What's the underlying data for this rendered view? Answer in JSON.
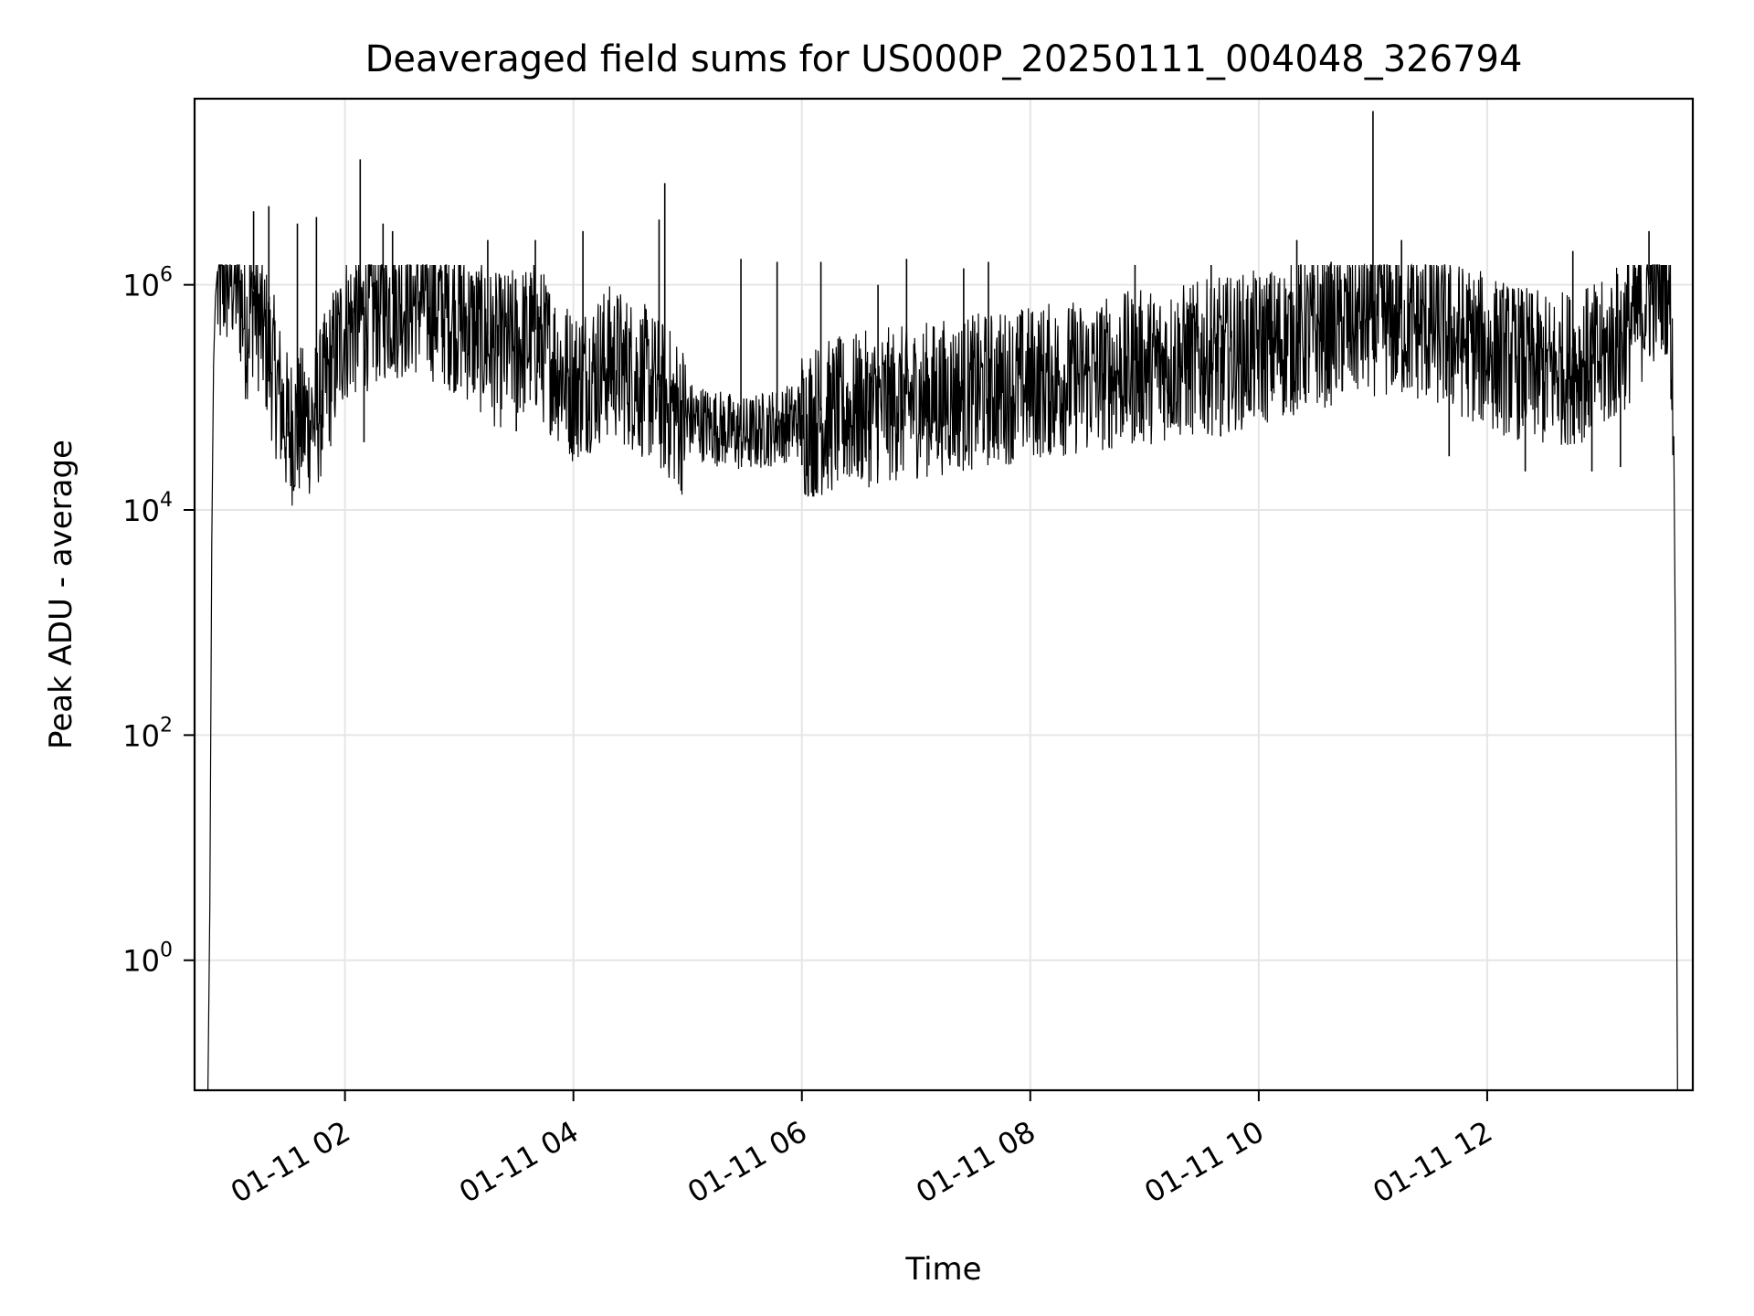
{
  "chart_data": {
    "type": "line",
    "title": "Deaveraged field sums for US000P_20250111_004048_326794",
    "xlabel": "Time",
    "ylabel": "Peak ADU - average",
    "yscale": "log",
    "grid": true,
    "line_color": "#000000",
    "grid_color": "#e6e6e6",
    "xlim": [
      "2025-01-11 00:41",
      "2025-01-11 13:48"
    ],
    "ylim": [
      0.07,
      45000000
    ],
    "x_ticks": [
      {
        "value": "2025-01-11 02:00",
        "label": "01-11 02"
      },
      {
        "value": "2025-01-11 04:00",
        "label": "01-11 04"
      },
      {
        "value": "2025-01-11 06:00",
        "label": "01-11 06"
      },
      {
        "value": "2025-01-11 08:00",
        "label": "01-11 08"
      },
      {
        "value": "2025-01-11 10:00",
        "label": "01-11 10"
      },
      {
        "value": "2025-01-11 12:00",
        "label": "01-11 12"
      }
    ],
    "y_ticks": [
      {
        "value": 1,
        "base": "10",
        "exp": "0"
      },
      {
        "value": 100,
        "base": "10",
        "exp": "2"
      },
      {
        "value": 10000,
        "base": "10",
        "exp": "4"
      },
      {
        "value": 1000000,
        "base": "10",
        "exp": "6"
      }
    ],
    "series": [
      {
        "points": [
          [
            "2025-01-11 00:48",
            0.04
          ],
          [
            "2025-01-11 00:49",
            3
          ],
          [
            "2025-01-11 00:50",
            5000
          ],
          [
            "2025-01-11 00:51",
            200000
          ],
          [
            "2025-01-11 00:52",
            800000
          ],
          [
            "2025-01-11 00:55",
            1300000
          ],
          [
            "2025-01-11 01:00",
            1500000
          ],
          [
            "2025-01-11 01:04",
            1200000
          ],
          [
            "2025-01-11 01:08",
            500000
          ],
          [
            "2025-01-11 01:12",
            900000
          ],
          [
            "2025-01-11 01:20",
            300000
          ],
          [
            "2025-01-11 01:30",
            60000
          ],
          [
            "2025-01-11 01:45",
            80000
          ],
          [
            "2025-01-11 02:00",
            500000
          ],
          [
            "2025-01-11 02:20",
            800000
          ],
          [
            "2025-01-11 02:40",
            900000
          ],
          [
            "2025-01-11 03:00",
            600000
          ],
          [
            "2025-01-11 03:20",
            300000
          ],
          [
            "2025-01-11 03:40",
            400000
          ],
          [
            "2025-01-11 04:00",
            150000
          ],
          [
            "2025-01-11 04:20",
            250000
          ],
          [
            "2025-01-11 04:40",
            150000
          ],
          [
            "2025-01-11 05:00",
            70000
          ],
          [
            "2025-01-11 05:30",
            50000
          ],
          [
            "2025-01-11 06:00",
            70000
          ],
          [
            "2025-01-11 06:30",
            90000
          ],
          [
            "2025-01-11 07:00",
            110000
          ],
          [
            "2025-01-11 07:30",
            130000
          ],
          [
            "2025-01-11 08:00",
            160000
          ],
          [
            "2025-01-11 08:30",
            180000
          ],
          [
            "2025-01-11 09:00",
            220000
          ],
          [
            "2025-01-11 09:30",
            260000
          ],
          [
            "2025-01-11 10:00",
            320000
          ],
          [
            "2025-01-11 10:30",
            450000
          ],
          [
            "2025-01-11 11:00",
            600000
          ],
          [
            "2025-01-11 11:30",
            500000
          ],
          [
            "2025-01-11 12:00",
            300000
          ],
          [
            "2025-01-11 12:30",
            200000
          ],
          [
            "2025-01-11 13:00",
            250000
          ],
          [
            "2025-01-11 13:15",
            500000
          ],
          [
            "2025-01-11 13:25",
            1000000
          ],
          [
            "2025-01-11 13:33",
            1500000
          ],
          [
            "2025-01-11 13:36",
            1000000
          ],
          [
            "2025-01-11 13:38",
            60000
          ],
          [
            "2025-01-11 13:39",
            300
          ],
          [
            "2025-01-11 13:40",
            0.04
          ]
        ],
        "spikes": [
          [
            "2025-01-11 01:12",
            4500000
          ],
          [
            "2025-01-11 01:20",
            5000000
          ],
          [
            "2025-01-11 01:35",
            3500000
          ],
          [
            "2025-01-11 01:45",
            4000000
          ],
          [
            "2025-01-11 02:08",
            13000000
          ],
          [
            "2025-01-11 02:20",
            3500000
          ],
          [
            "2025-01-11 02:25",
            3000000
          ],
          [
            "2025-01-11 03:15",
            2500000
          ],
          [
            "2025-01-11 03:40",
            2500000
          ],
          [
            "2025-01-11 04:05",
            3000000
          ],
          [
            "2025-01-11 04:48",
            8000000
          ],
          [
            "2025-01-11 04:45",
            3800000
          ],
          [
            "2025-01-11 05:28",
            1700000
          ],
          [
            "2025-01-11 05:47",
            1600000
          ],
          [
            "2025-01-11 06:10",
            1600000
          ],
          [
            "2025-01-11 06:40",
            1000000
          ],
          [
            "2025-01-11 06:55",
            1700000
          ],
          [
            "2025-01-11 07:25",
            1400000
          ],
          [
            "2025-01-11 07:38",
            1600000
          ],
          [
            "2025-01-11 08:55",
            1500000
          ],
          [
            "2025-01-11 09:35",
            1500000
          ],
          [
            "2025-01-11 10:20",
            2500000
          ],
          [
            "2025-01-11 10:38",
            1600000
          ],
          [
            "2025-01-11 11:00",
            35000000
          ],
          [
            "2025-01-11 11:15",
            2500000
          ],
          [
            "2025-01-11 11:30",
            1500000
          ],
          [
            "2025-01-11 12:45",
            2000000
          ],
          [
            "2025-01-11 13:25",
            3000000
          ]
        ],
        "dips": [
          [
            "2025-01-11 01:30",
            45000
          ],
          [
            "2025-01-11 01:48",
            35000
          ],
          [
            "2025-01-11 02:10",
            40000
          ],
          [
            "2025-01-11 03:30",
            50000
          ],
          [
            "2025-01-11 04:00",
            38000
          ],
          [
            "2025-01-11 05:50",
            30000
          ],
          [
            "2025-01-11 06:00",
            25000
          ],
          [
            "2025-01-11 06:40",
            28000
          ],
          [
            "2025-01-11 06:50",
            22000
          ],
          [
            "2025-01-11 08:10",
            35000
          ],
          [
            "2025-01-11 09:40",
            45000
          ],
          [
            "2025-01-11 11:40",
            30000
          ],
          [
            "2025-01-11 12:20",
            22000
          ],
          [
            "2025-01-11 12:55",
            22000
          ],
          [
            "2025-01-11 13:10",
            24000
          ]
        ]
      }
    ]
  }
}
